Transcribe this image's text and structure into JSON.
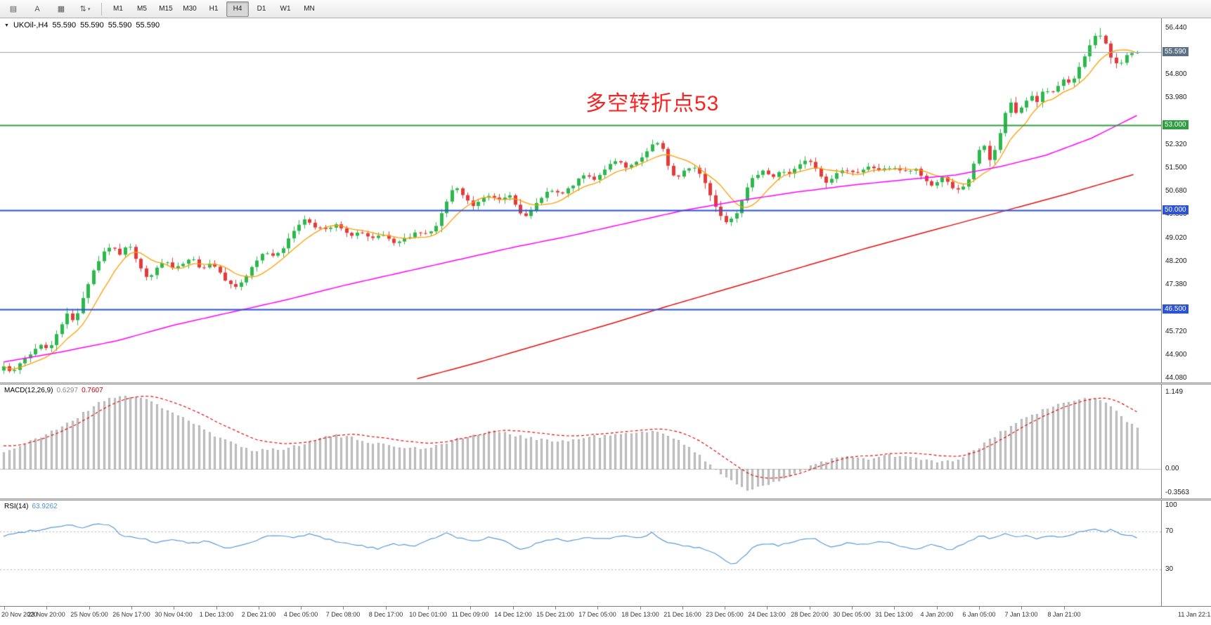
{
  "toolbar": {
    "icons": [
      {
        "name": "new-order-icon",
        "glyph": "▤"
      },
      {
        "name": "cursor-tool",
        "glyph": "A"
      },
      {
        "name": "chart-window-icon",
        "glyph": "▦"
      },
      {
        "name": "chart-tools-dropdown",
        "glyph": "⇅",
        "caret": "▾"
      }
    ],
    "timeframes": [
      "M1",
      "M5",
      "M15",
      "M30",
      "H1",
      "H4",
      "D1",
      "W1",
      "MN"
    ],
    "active_timeframe": "H4"
  },
  "main_chart": {
    "header": {
      "collapse_icon": "▼",
      "symbol": "UKOil-,H4",
      "open": "55.590",
      "high": "55.590",
      "low": "55.590",
      "close": "55.590"
    },
    "annotation": {
      "text": "多空转折点53",
      "color": "#fb2222"
    },
    "y_axis": {
      "min": 43.93,
      "max": 56.78,
      "ticks": [
        "56.440",
        "54.800",
        "53.980",
        "52.320",
        "51.500",
        "50.680",
        "49.860",
        "49.020",
        "48.200",
        "47.380",
        "45.720",
        "44.900",
        "44.080"
      ]
    },
    "levels": [
      {
        "value": 55.59,
        "label": "55.590",
        "color": "#5b7083",
        "line_color": "#93a6b5",
        "name": "bid-price"
      },
      {
        "value": 53.0,
        "label": "53.000",
        "color": "#2f9e41",
        "line_color": "#2f9e41",
        "name": "green-level-53"
      },
      {
        "value": 50.0,
        "label": "50.000",
        "color": "#2c52d8",
        "line_color": "#2c52d8",
        "name": "blue-level-50"
      },
      {
        "value": 46.5,
        "label": "46.500",
        "color": "#2c52d8",
        "line_color": "#2c52d8",
        "name": "blue-level-46-5"
      }
    ]
  },
  "indicators": {
    "macd": {
      "name": "MACD(12,26,9)",
      "value_main": "0.6297",
      "value_signal": "0.7607",
      "axis": [
        "1.149",
        "0.00",
        "-0.3563"
      ],
      "axis_values": [
        1.149,
        0,
        -0.3563
      ],
      "range": {
        "min": -0.44,
        "max": 1.26
      }
    },
    "rsi": {
      "name": "RSI(14)",
      "value": "63.9262",
      "axis": [
        "100",
        "70",
        "30"
      ],
      "axis_values": [
        100,
        70,
        30
      ],
      "levels": [
        70,
        30
      ],
      "range": {
        "min": -8,
        "max": 102
      }
    }
  },
  "time_axis": {
    "labels": [
      "20 Nov 2020",
      "23 Nov 20:00",
      "25 Nov 05:00",
      "26 Nov 17:00",
      "30 Nov 04:00",
      "1 Dec 13:00",
      "2 Dec 21:00",
      "4 Dec 05:00",
      "7 Dec 08:00",
      "8 Dec 17:00",
      "10 Dec 01:00",
      "11 Dec 09:00",
      "14 Dec 12:00",
      "15 Dec 21:00",
      "17 Dec 05:00",
      "18 Dec 13:00",
      "21 Dec 16:00",
      "23 Dec 05:00",
      "24 Dec 13:00",
      "28 Dec 20:00",
      "30 Dec 05:00",
      "31 Dec 13:00",
      "4 Jan 20:00",
      "6 Jan 05:00",
      "7 Jan 13:00",
      "8 Jan 21:00",
      "11 Jan 22:15"
    ]
  },
  "chart_data": {
    "type": "candlestick",
    "symbol": "UKOil-",
    "timeframe": "H4",
    "candle_count": 216,
    "last_close": 55.59,
    "high_max": 56.44,
    "price_anchors": [
      [
        0.0,
        44.55
      ],
      [
        0.008,
        44.25
      ],
      [
        0.016,
        44.7
      ],
      [
        0.024,
        44.95
      ],
      [
        0.032,
        45.3
      ],
      [
        0.04,
        45.05
      ],
      [
        0.048,
        45.8
      ],
      [
        0.056,
        46.35
      ],
      [
        0.062,
        46.05
      ],
      [
        0.07,
        46.95
      ],
      [
        0.078,
        47.8
      ],
      [
        0.086,
        48.4
      ],
      [
        0.094,
        48.75
      ],
      [
        0.102,
        48.45
      ],
      [
        0.11,
        48.9
      ],
      [
        0.118,
        48.15
      ],
      [
        0.126,
        47.6
      ],
      [
        0.134,
        47.9
      ],
      [
        0.142,
        48.25
      ],
      [
        0.15,
        47.9
      ],
      [
        0.158,
        48.1
      ],
      [
        0.166,
        48.3
      ],
      [
        0.174,
        47.95
      ],
      [
        0.182,
        48.15
      ],
      [
        0.19,
        47.9
      ],
      [
        0.198,
        47.4
      ],
      [
        0.206,
        47.3
      ],
      [
        0.214,
        47.7
      ],
      [
        0.222,
        48.15
      ],
      [
        0.23,
        48.55
      ],
      [
        0.238,
        48.4
      ],
      [
        0.248,
        48.75
      ],
      [
        0.258,
        49.45
      ],
      [
        0.266,
        49.7
      ],
      [
        0.274,
        49.45
      ],
      [
        0.284,
        49.3
      ],
      [
        0.294,
        49.5
      ],
      [
        0.304,
        49.1
      ],
      [
        0.314,
        49.25
      ],
      [
        0.324,
        48.95
      ],
      [
        0.334,
        49.15
      ],
      [
        0.344,
        48.8
      ],
      [
        0.354,
        49.0
      ],
      [
        0.364,
        49.25
      ],
      [
        0.374,
        49.15
      ],
      [
        0.382,
        49.45
      ],
      [
        0.39,
        50.25
      ],
      [
        0.398,
        50.9
      ],
      [
        0.406,
        50.45
      ],
      [
        0.414,
        50.15
      ],
      [
        0.422,
        50.45
      ],
      [
        0.43,
        50.6
      ],
      [
        0.438,
        50.3
      ],
      [
        0.446,
        50.55
      ],
      [
        0.452,
        50.2
      ],
      [
        0.458,
        49.7
      ],
      [
        0.466,
        50.0
      ],
      [
        0.474,
        50.45
      ],
      [
        0.482,
        50.7
      ],
      [
        0.492,
        50.55
      ],
      [
        0.502,
        50.9
      ],
      [
        0.512,
        51.25
      ],
      [
        0.522,
        51.1
      ],
      [
        0.532,
        51.55
      ],
      [
        0.542,
        51.75
      ],
      [
        0.55,
        51.45
      ],
      [
        0.558,
        51.7
      ],
      [
        0.566,
        51.95
      ],
      [
        0.574,
        52.45
      ],
      [
        0.58,
        52.35
      ],
      [
        0.586,
        51.55
      ],
      [
        0.592,
        51.1
      ],
      [
        0.6,
        51.4
      ],
      [
        0.608,
        51.55
      ],
      [
        0.616,
        51.25
      ],
      [
        0.622,
        50.65
      ],
      [
        0.63,
        49.95
      ],
      [
        0.638,
        49.6
      ],
      [
        0.646,
        49.9
      ],
      [
        0.654,
        50.65
      ],
      [
        0.662,
        51.2
      ],
      [
        0.67,
        51.45
      ],
      [
        0.678,
        51.15
      ],
      [
        0.686,
        51.4
      ],
      [
        0.694,
        51.3
      ],
      [
        0.702,
        51.6
      ],
      [
        0.71,
        51.8
      ],
      [
        0.718,
        51.35
      ],
      [
        0.726,
        50.95
      ],
      [
        0.734,
        51.3
      ],
      [
        0.744,
        51.45
      ],
      [
        0.754,
        51.3
      ],
      [
        0.764,
        51.55
      ],
      [
        0.774,
        51.4
      ],
      [
        0.784,
        51.55
      ],
      [
        0.794,
        51.35
      ],
      [
        0.804,
        51.45
      ],
      [
        0.812,
        51.1
      ],
      [
        0.82,
        50.85
      ],
      [
        0.828,
        51.2
      ],
      [
        0.836,
        50.8
      ],
      [
        0.844,
        50.65
      ],
      [
        0.852,
        51.15
      ],
      [
        0.858,
        51.95
      ],
      [
        0.864,
        52.35
      ],
      [
        0.87,
        51.75
      ],
      [
        0.876,
        52.25
      ],
      [
        0.882,
        53.25
      ],
      [
        0.888,
        53.85
      ],
      [
        0.894,
        53.35
      ],
      [
        0.9,
        53.75
      ],
      [
        0.906,
        54.1
      ],
      [
        0.912,
        53.85
      ],
      [
        0.918,
        54.3
      ],
      [
        0.924,
        54.05
      ],
      [
        0.93,
        54.4
      ],
      [
        0.936,
        54.7
      ],
      [
        0.942,
        54.45
      ],
      [
        0.948,
        54.95
      ],
      [
        0.954,
        55.45
      ],
      [
        0.96,
        55.95
      ],
      [
        0.966,
        56.3
      ],
      [
        0.972,
        55.85
      ],
      [
        0.978,
        55.3
      ],
      [
        0.984,
        55.1
      ],
      [
        0.99,
        55.45
      ],
      [
        1.0,
        55.59
      ]
    ],
    "ma_fast_period": 8,
    "ma_medium_anchors": [
      [
        0.0,
        44.65
      ],
      [
        0.05,
        45.0
      ],
      [
        0.1,
        45.4
      ],
      [
        0.15,
        45.95
      ],
      [
        0.2,
        46.4
      ],
      [
        0.25,
        46.85
      ],
      [
        0.3,
        47.35
      ],
      [
        0.35,
        47.8
      ],
      [
        0.4,
        48.25
      ],
      [
        0.45,
        48.7
      ],
      [
        0.5,
        49.1
      ],
      [
        0.55,
        49.55
      ],
      [
        0.6,
        50.0
      ],
      [
        0.65,
        50.35
      ],
      [
        0.7,
        50.65
      ],
      [
        0.75,
        50.9
      ],
      [
        0.8,
        51.1
      ],
      [
        0.84,
        51.25
      ],
      [
        0.88,
        51.55
      ],
      [
        0.92,
        51.95
      ],
      [
        0.96,
        52.55
      ],
      [
        1.0,
        53.35
      ]
    ],
    "ma_slow_anchors": [
      [
        0.365,
        44.06
      ],
      [
        0.42,
        44.65
      ],
      [
        0.48,
        45.35
      ],
      [
        0.54,
        46.05
      ],
      [
        0.58,
        46.55
      ],
      [
        0.64,
        47.25
      ],
      [
        0.7,
        47.95
      ],
      [
        0.76,
        48.65
      ],
      [
        0.82,
        49.3
      ],
      [
        0.88,
        49.95
      ],
      [
        0.94,
        50.6
      ],
      [
        1.0,
        51.3
      ]
    ],
    "macd_anchors": [
      [
        0.0,
        0.25
      ],
      [
        0.03,
        0.45
      ],
      [
        0.06,
        0.72
      ],
      [
        0.09,
        1.05
      ],
      [
        0.11,
        1.1
      ],
      [
        0.13,
        1.0
      ],
      [
        0.16,
        0.75
      ],
      [
        0.19,
        0.45
      ],
      [
        0.22,
        0.28
      ],
      [
        0.25,
        0.3
      ],
      [
        0.27,
        0.42
      ],
      [
        0.29,
        0.5
      ],
      [
        0.31,
        0.45
      ],
      [
        0.34,
        0.34
      ],
      [
        0.37,
        0.3
      ],
      [
        0.4,
        0.44
      ],
      [
        0.43,
        0.56
      ],
      [
        0.46,
        0.48
      ],
      [
        0.49,
        0.4
      ],
      [
        0.52,
        0.48
      ],
      [
        0.55,
        0.52
      ],
      [
        0.58,
        0.56
      ],
      [
        0.6,
        0.38
      ],
      [
        0.62,
        0.1
      ],
      [
        0.64,
        -0.15
      ],
      [
        0.655,
        -0.3
      ],
      [
        0.67,
        -0.27
      ],
      [
        0.685,
        -0.17
      ],
      [
        0.7,
        -0.04
      ],
      [
        0.72,
        0.1
      ],
      [
        0.74,
        0.18
      ],
      [
        0.76,
        0.14
      ],
      [
        0.78,
        0.2
      ],
      [
        0.8,
        0.17
      ],
      [
        0.82,
        0.11
      ],
      [
        0.84,
        0.1
      ],
      [
        0.86,
        0.32
      ],
      [
        0.88,
        0.55
      ],
      [
        0.9,
        0.75
      ],
      [
        0.92,
        0.9
      ],
      [
        0.945,
        1.02
      ],
      [
        0.96,
        1.07
      ],
      [
        0.975,
        0.95
      ],
      [
        0.99,
        0.72
      ],
      [
        1.0,
        0.63
      ]
    ],
    "rsi_anchors": [
      [
        0.0,
        65
      ],
      [
        0.02,
        70
      ],
      [
        0.04,
        73
      ],
      [
        0.055,
        77
      ],
      [
        0.07,
        74
      ],
      [
        0.085,
        78
      ],
      [
        0.095,
        76
      ],
      [
        0.105,
        64
      ],
      [
        0.12,
        63
      ],
      [
        0.135,
        58
      ],
      [
        0.15,
        62
      ],
      [
        0.165,
        57
      ],
      [
        0.18,
        60
      ],
      [
        0.195,
        52
      ],
      [
        0.21,
        55
      ],
      [
        0.225,
        62
      ],
      [
        0.24,
        66
      ],
      [
        0.255,
        63
      ],
      [
        0.27,
        67
      ],
      [
        0.285,
        62
      ],
      [
        0.3,
        58
      ],
      [
        0.315,
        55
      ],
      [
        0.33,
        52
      ],
      [
        0.345,
        57
      ],
      [
        0.36,
        54
      ],
      [
        0.375,
        60
      ],
      [
        0.39,
        69
      ],
      [
        0.4,
        63
      ],
      [
        0.415,
        60
      ],
      [
        0.43,
        64
      ],
      [
        0.445,
        58
      ],
      [
        0.455,
        50
      ],
      [
        0.47,
        57
      ],
      [
        0.485,
        62
      ],
      [
        0.5,
        60
      ],
      [
        0.515,
        64
      ],
      [
        0.53,
        62
      ],
      [
        0.545,
        65
      ],
      [
        0.56,
        63
      ],
      [
        0.572,
        68
      ],
      [
        0.585,
        58
      ],
      [
        0.6,
        55
      ],
      [
        0.615,
        52
      ],
      [
        0.63,
        45
      ],
      [
        0.645,
        34
      ],
      [
        0.66,
        52
      ],
      [
        0.672,
        58
      ],
      [
        0.685,
        55
      ],
      [
        0.7,
        60
      ],
      [
        0.715,
        62
      ],
      [
        0.73,
        54
      ],
      [
        0.745,
        58
      ],
      [
        0.76,
        56
      ],
      [
        0.775,
        60
      ],
      [
        0.79,
        55
      ],
      [
        0.805,
        52
      ],
      [
        0.82,
        56
      ],
      [
        0.835,
        50
      ],
      [
        0.85,
        58
      ],
      [
        0.862,
        66
      ],
      [
        0.872,
        62
      ],
      [
        0.882,
        68
      ],
      [
        0.892,
        64
      ],
      [
        0.902,
        66
      ],
      [
        0.912,
        62
      ],
      [
        0.922,
        65
      ],
      [
        0.932,
        63
      ],
      [
        0.942,
        66
      ],
      [
        0.952,
        70
      ],
      [
        0.962,
        73
      ],
      [
        0.97,
        68
      ],
      [
        0.977,
        72
      ],
      [
        0.986,
        66
      ],
      [
        1.0,
        64
      ]
    ]
  },
  "colors": {
    "candle_up": "#2db84d",
    "candle_down": "#e33b3b",
    "ma_fast": "#ff9d00",
    "ma_medium": "#ff00ff",
    "ma_slow": "#e01010",
    "macd_bar": "#cccccc",
    "macd_bar_border": "#9b9b9b",
    "macd_signal": "#e01010",
    "macd_zero_line": "#c0c0c0",
    "rsi_line": "#5b9bd5",
    "level_dash": "#b0b0b0",
    "axis_text": "#1a1a1a"
  }
}
